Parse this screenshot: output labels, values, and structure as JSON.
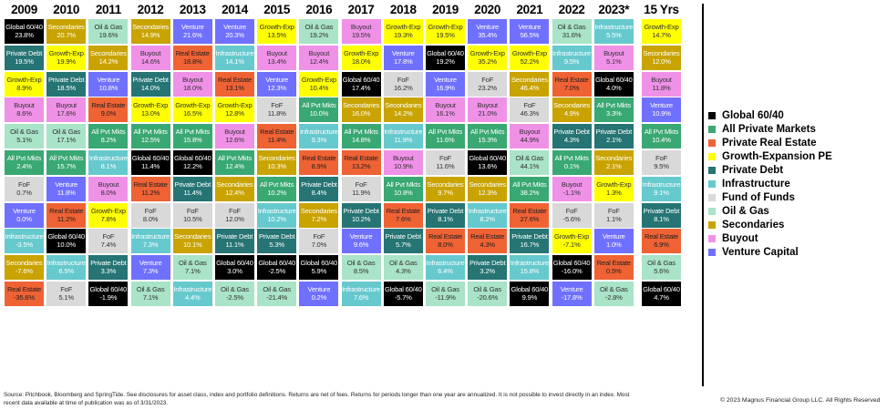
{
  "chart_data": {
    "type": "table",
    "title": "",
    "categories_legend": [
      {
        "key": "G",
        "label": "Global 60/40",
        "short": "Global 60/40",
        "color": "#000000",
        "text": "#ffffff"
      },
      {
        "key": "A",
        "label": "All Private Markets",
        "short": "All Pvt Mkts",
        "color": "#3aa873",
        "text": "#ffffff"
      },
      {
        "key": "R",
        "label": "Private Real Estate",
        "short": "Real Estate",
        "color": "#ef6234",
        "text": "#222222"
      },
      {
        "key": "X",
        "label": "Growth-Expansion PE",
        "short": "Growth-Exp",
        "color": "#ffff00",
        "text": "#333333"
      },
      {
        "key": "D",
        "label": "Private Debt",
        "short": "Private Debt",
        "color": "#267474",
        "text": "#ffffff"
      },
      {
        "key": "I",
        "label": "Infrastructure",
        "short": "Infrastructure",
        "color": "#66c9ce",
        "text": "#ffffff"
      },
      {
        "key": "F",
        "label": "Fund of Funds",
        "short": "FoF",
        "color": "#d9d9d9",
        "text": "#333333"
      },
      {
        "key": "O",
        "label": "Oil & Gas",
        "short": "Oil & Gas",
        "color": "#a9e3c8",
        "text": "#333333"
      },
      {
        "key": "S",
        "label": "Secondaries",
        "short": "Secondaries",
        "color": "#c9a300",
        "text": "#ffffff"
      },
      {
        "key": "B",
        "label": "Buyout",
        "short": "Buyout",
        "color": "#f091e8",
        "text": "#333333"
      },
      {
        "key": "V",
        "label": "Venture Capital",
        "short": "Venture",
        "color": "#7070ff",
        "text": "#ffffff"
      }
    ],
    "columns": [
      {
        "year": "2009",
        "cells": [
          [
            "G",
            "23.8%"
          ],
          [
            "D",
            "19.5%"
          ],
          [
            "X",
            "8.9%"
          ],
          [
            "B",
            "8.6%"
          ],
          [
            "O",
            "5.1%"
          ],
          [
            "A",
            "2.4%"
          ],
          [
            "F",
            "0.7%"
          ],
          [
            "V",
            "0.0%"
          ],
          [
            "I",
            "-3.5%"
          ],
          [
            "S",
            "-7.6%"
          ],
          [
            "R",
            "-35.6%"
          ]
        ]
      },
      {
        "year": "2010",
        "cells": [
          [
            "S",
            "20.7%"
          ],
          [
            "X",
            "19.9%"
          ],
          [
            "D",
            "18.5%"
          ],
          [
            "B",
            "17.6%"
          ],
          [
            "O",
            "17.1%"
          ],
          [
            "A",
            "15.7%"
          ],
          [
            "V",
            "11.8%"
          ],
          [
            "R",
            "11.2%"
          ],
          [
            "G",
            "10.0%"
          ],
          [
            "I",
            "6.5%"
          ],
          [
            "F",
            "5.1%"
          ]
        ]
      },
      {
        "year": "2011",
        "cells": [
          [
            "O",
            "19.6%"
          ],
          [
            "S",
            "14.2%"
          ],
          [
            "V",
            "10.8%"
          ],
          [
            "R",
            "9.0%"
          ],
          [
            "A",
            "8.2%"
          ],
          [
            "I",
            "8.1%"
          ],
          [
            "B",
            "8.0%"
          ],
          [
            "X",
            "7.8%"
          ],
          [
            "F",
            "7.4%"
          ],
          [
            "D",
            "3.3%"
          ],
          [
            "G",
            "-1.9%"
          ]
        ]
      },
      {
        "year": "2012",
        "cells": [
          [
            "S",
            "14.9%"
          ],
          [
            "B",
            "14.6%"
          ],
          [
            "D",
            "14.0%"
          ],
          [
            "X",
            "13.0%"
          ],
          [
            "A",
            "12.5%"
          ],
          [
            "G",
            "11.4%"
          ],
          [
            "R",
            "11.2%"
          ],
          [
            "F",
            "8.0%"
          ],
          [
            "I",
            "7.3%"
          ],
          [
            "V",
            "7.3%"
          ],
          [
            "O",
            "7.1%"
          ]
        ]
      },
      {
        "year": "2013",
        "cells": [
          [
            "V",
            "21.6%"
          ],
          [
            "R",
            "18.8%"
          ],
          [
            "B",
            "18.0%"
          ],
          [
            "X",
            "16.5%"
          ],
          [
            "A",
            "15.8%"
          ],
          [
            "G",
            "12.2%"
          ],
          [
            "D",
            "11.4%"
          ],
          [
            "F",
            "10.5%"
          ],
          [
            "S",
            "10.1%"
          ],
          [
            "O",
            "7.1%"
          ],
          [
            "I",
            "4.4%"
          ]
        ]
      },
      {
        "year": "2014",
        "cells": [
          [
            "V",
            "20.3%"
          ],
          [
            "I",
            "14.1%"
          ],
          [
            "R",
            "13.1%"
          ],
          [
            "X",
            "12.8%"
          ],
          [
            "B",
            "12.6%"
          ],
          [
            "A",
            "12.4%"
          ],
          [
            "S",
            "12.4%"
          ],
          [
            "F",
            "12.0%"
          ],
          [
            "D",
            "11.1%"
          ],
          [
            "G",
            "3.0%"
          ],
          [
            "O",
            "-2.5%"
          ]
        ]
      },
      {
        "year": "2015",
        "cells": [
          [
            "X",
            "13.5%"
          ],
          [
            "B",
            "13.4%"
          ],
          [
            "V",
            "12.3%"
          ],
          [
            "F",
            "11.8%"
          ],
          [
            "R",
            "11.4%"
          ],
          [
            "S",
            "10.3%"
          ],
          [
            "A",
            "10.2%"
          ],
          [
            "I",
            "10.2%"
          ],
          [
            "D",
            "5.3%"
          ],
          [
            "G",
            "-2.5%"
          ],
          [
            "O",
            "-21.4%"
          ]
        ]
      },
      {
        "year": "2016",
        "cells": [
          [
            "O",
            "19.2%"
          ],
          [
            "B",
            "12.4%"
          ],
          [
            "X",
            "10.4%"
          ],
          [
            "A",
            "10.0%"
          ],
          [
            "I",
            "9.3%"
          ],
          [
            "R",
            "8.9%"
          ],
          [
            "D",
            "8.4%"
          ],
          [
            "S",
            "7.2%"
          ],
          [
            "F",
            "7.0%"
          ],
          [
            "G",
            "5.9%"
          ],
          [
            "V",
            "0.2%"
          ]
        ]
      },
      {
        "year": "2017",
        "cells": [
          [
            "B",
            "19.5%"
          ],
          [
            "X",
            "18.0%"
          ],
          [
            "G",
            "17.4%"
          ],
          [
            "S",
            "16.0%"
          ],
          [
            "A",
            "14.8%"
          ],
          [
            "R",
            "13.2%"
          ],
          [
            "F",
            "11.9%"
          ],
          [
            "D",
            "10.2%"
          ],
          [
            "V",
            "9.6%"
          ],
          [
            "O",
            "8.5%"
          ],
          [
            "I",
            "7.6%"
          ]
        ]
      },
      {
        "year": "2018",
        "cells": [
          [
            "X",
            "19.3%"
          ],
          [
            "V",
            "17.8%"
          ],
          [
            "F",
            "16.2%"
          ],
          [
            "S",
            "14.2%"
          ],
          [
            "I",
            "11.9%"
          ],
          [
            "B",
            "10.9%"
          ],
          [
            "A",
            "10.8%"
          ],
          [
            "R",
            "7.6%"
          ],
          [
            "D",
            "5.7%"
          ],
          [
            "O",
            "4.3%"
          ],
          [
            "G",
            "-5.7%"
          ]
        ]
      },
      {
        "year": "2019",
        "cells": [
          [
            "X",
            "19.5%"
          ],
          [
            "G",
            "19.2%"
          ],
          [
            "V",
            "16.9%"
          ],
          [
            "B",
            "16.1%"
          ],
          [
            "A",
            "11.6%"
          ],
          [
            "F",
            "11.6%"
          ],
          [
            "S",
            "9.7%"
          ],
          [
            "D",
            "8.1%"
          ],
          [
            "R",
            "8.0%"
          ],
          [
            "I",
            "6.4%"
          ],
          [
            "O",
            "-11.9%"
          ]
        ]
      },
      {
        "year": "2020",
        "cells": [
          [
            "V",
            "35.4%"
          ],
          [
            "X",
            "35.2%"
          ],
          [
            "F",
            "23.2%"
          ],
          [
            "B",
            "21.0%"
          ],
          [
            "A",
            "15.3%"
          ],
          [
            "G",
            "13.6%"
          ],
          [
            "S",
            "12.3%"
          ],
          [
            "I",
            "8.2%"
          ],
          [
            "R",
            "4.3%"
          ],
          [
            "D",
            "3.2%"
          ],
          [
            "O",
            "-20.6%"
          ]
        ]
      },
      {
        "year": "2021",
        "cells": [
          [
            "V",
            "56.5%"
          ],
          [
            "X",
            "52.2%"
          ],
          [
            "S",
            "46.4%"
          ],
          [
            "F",
            "46.3%"
          ],
          [
            "B",
            "44.9%"
          ],
          [
            "O",
            "44.1%"
          ],
          [
            "A",
            "38.2%"
          ],
          [
            "R",
            "27.6%"
          ],
          [
            "D",
            "16.7%"
          ],
          [
            "I",
            "15.8%"
          ],
          [
            "G",
            "9.9%"
          ]
        ]
      },
      {
        "year": "2022",
        "cells": [
          [
            "O",
            "31.6%"
          ],
          [
            "I",
            "9.5%"
          ],
          [
            "R",
            "7.0%"
          ],
          [
            "S",
            "4.9%"
          ],
          [
            "D",
            "4.3%"
          ],
          [
            "A",
            "0.1%"
          ],
          [
            "B",
            "-1.1%"
          ],
          [
            "F",
            "-5.6%"
          ],
          [
            "X",
            "-7.1%"
          ],
          [
            "G",
            "-16.0%"
          ],
          [
            "V",
            "-17.8%"
          ]
        ]
      },
      {
        "year": "2023*",
        "cells": [
          [
            "I",
            "5.5%"
          ],
          [
            "B",
            "5.1%"
          ],
          [
            "G",
            "4.0%"
          ],
          [
            "A",
            "3.3%"
          ],
          [
            "D",
            "2.1%"
          ],
          [
            "S",
            "2.1%"
          ],
          [
            "X",
            "1.3%"
          ],
          [
            "F",
            "1.1%"
          ],
          [
            "V",
            "1.0%"
          ],
          [
            "R",
            "0.5%"
          ],
          [
            "O",
            "-2.8%"
          ]
        ]
      },
      {
        "year": "15 Yrs",
        "cells": [
          [
            "X",
            "14.7%"
          ],
          [
            "S",
            "12.0%"
          ],
          [
            "B",
            "11.8%"
          ],
          [
            "V",
            "10.9%"
          ],
          [
            "A",
            "10.4%"
          ],
          [
            "F",
            "9.5%"
          ],
          [
            "I",
            "9.1%"
          ],
          [
            "D",
            "8.1%"
          ],
          [
            "R",
            "6.9%"
          ],
          [
            "O",
            "5.6%"
          ],
          [
            "G",
            "4.7%"
          ]
        ]
      }
    ]
  },
  "footer": {
    "source": "Source: Pitchbook, Bloomberg and SpringTide. See disclosures for asset class, index and portfolio definitions. Returns are net of fees. Returns for periods longer than one year are annualized. It is not possible to invest directly in an index. Most recent data available at time of publication was as of 3/31/2023.",
    "copyright": "© 2023 Magnus Financial Group LLC. All Rights Reserved"
  }
}
